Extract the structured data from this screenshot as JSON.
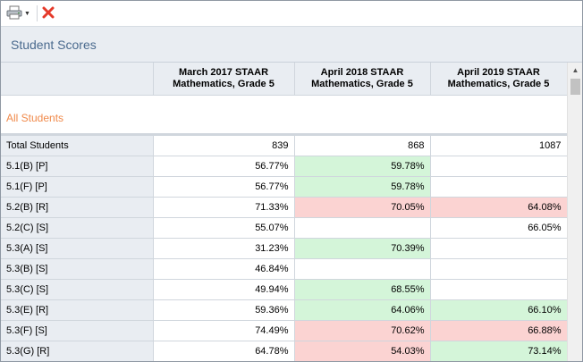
{
  "toolbar": {
    "print_icon": "printer-icon",
    "close_icon": "close-x-icon",
    "accent_close": "#e53a2a"
  },
  "panel": {
    "title": "Student Scores"
  },
  "table": {
    "columns": [
      {
        "line1": "March 2017 STAAR",
        "line2": "Mathematics, Grade 5"
      },
      {
        "line1": "April 2018 STAAR",
        "line2": "Mathematics, Grade 5"
      },
      {
        "line1": "April 2019 STAAR",
        "line2": "Mathematics, Grade 5"
      }
    ],
    "group_label": "All Students",
    "rows": [
      {
        "label": "Total Students",
        "values": [
          "839",
          "868",
          "1087"
        ],
        "status": [
          "",
          "",
          ""
        ]
      },
      {
        "label": "5.1(B) [P]",
        "values": [
          "56.77%",
          "59.78%",
          ""
        ],
        "status": [
          "",
          "green",
          ""
        ]
      },
      {
        "label": "5.1(F) [P]",
        "values": [
          "56.77%",
          "59.78%",
          ""
        ],
        "status": [
          "",
          "green",
          ""
        ]
      },
      {
        "label": "5.2(B) [R]",
        "values": [
          "71.33%",
          "70.05%",
          "64.08%"
        ],
        "status": [
          "",
          "red",
          "red"
        ]
      },
      {
        "label": "5.2(C) [S]",
        "values": [
          "55.07%",
          "",
          "66.05%"
        ],
        "status": [
          "",
          "",
          ""
        ]
      },
      {
        "label": "5.3(A) [S]",
        "values": [
          "31.23%",
          "70.39%",
          ""
        ],
        "status": [
          "",
          "green",
          ""
        ]
      },
      {
        "label": "5.3(B) [S]",
        "values": [
          "46.84%",
          "",
          ""
        ],
        "status": [
          "",
          "",
          ""
        ]
      },
      {
        "label": "5.3(C) [S]",
        "values": [
          "49.94%",
          "68.55%",
          ""
        ],
        "status": [
          "",
          "green",
          ""
        ]
      },
      {
        "label": "5.3(E) [R]",
        "values": [
          "59.36%",
          "64.06%",
          "66.10%"
        ],
        "status": [
          "",
          "green",
          "green"
        ]
      },
      {
        "label": "5.3(F) [S]",
        "values": [
          "74.49%",
          "70.62%",
          "66.88%"
        ],
        "status": [
          "",
          "red",
          "red"
        ]
      },
      {
        "label": "5.3(G) [R]",
        "values": [
          "64.78%",
          "54.03%",
          "73.14%"
        ],
        "status": [
          "",
          "red",
          "green"
        ]
      }
    ]
  },
  "colors": {
    "green": "#d4f5d9",
    "red": "#fbd3d2",
    "group_label": "#f08a4b",
    "title": "#4a6a8e"
  }
}
